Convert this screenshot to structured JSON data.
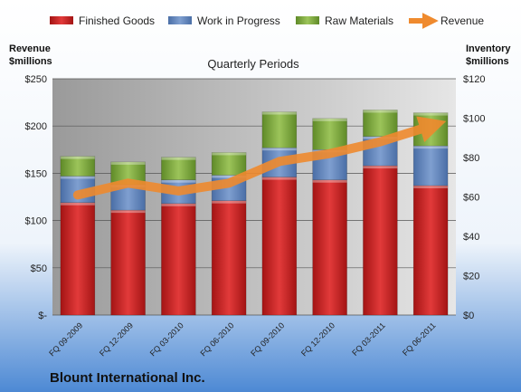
{
  "footer_title": "Blount International Inc.",
  "colors": {
    "finished_goods": "#d42a2a",
    "work_in_progress": "#5b7fb8",
    "raw_materials": "#7aa33a",
    "revenue": "#ef8a2e"
  },
  "chart_data": {
    "type": "bar",
    "stacked": true,
    "subtitle": "Quarterly Periods",
    "categories": [
      "FQ 09-2009",
      "FQ 12-2009",
      "FQ 03-2010",
      "FQ 06-2010",
      "FQ 09-2010",
      "FQ 12-2010",
      "FQ 03-2011",
      "FQ 06-2011"
    ],
    "series": [
      {
        "name": "Finished Goods",
        "axis": "left",
        "values": [
          119,
          111,
          118,
          121,
          146,
          143,
          158,
          137
        ]
      },
      {
        "name": "Work in Progress",
        "axis": "left",
        "values": [
          28,
          27,
          25,
          27,
          31,
          32,
          31,
          42
        ]
      },
      {
        "name": "Raw Materials",
        "axis": "left",
        "values": [
          21,
          24,
          24,
          24,
          38,
          33,
          28,
          35
        ]
      },
      {
        "name": "Revenue",
        "type": "line",
        "axis": "right",
        "values": [
          61,
          67,
          63,
          67,
          78,
          82,
          88,
          96
        ]
      }
    ],
    "left_axis": {
      "label_line1": "Revenue",
      "label_line2": "$millions",
      "range": [
        0,
        250
      ],
      "ticks": [
        "$-",
        "$50",
        "$100",
        "$150",
        "$200",
        "$250"
      ]
    },
    "right_axis": {
      "label_line1": "Inventory",
      "label_line2": "$millions",
      "range": [
        0,
        120
      ],
      "ticks": [
        "$0",
        "$20",
        "$40",
        "$60",
        "$80",
        "$100",
        "$120"
      ]
    },
    "grid": true,
    "legend_position": "top"
  }
}
